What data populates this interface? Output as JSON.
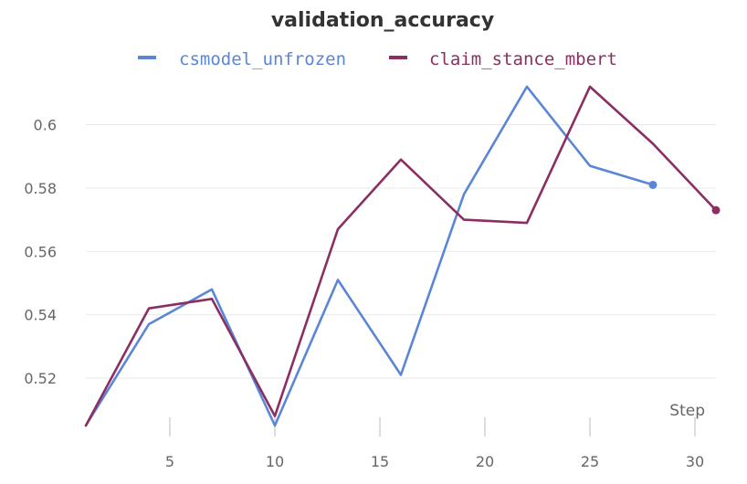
{
  "chart_data": {
    "type": "line",
    "title": "validation_accuracy",
    "xlabel": "Step",
    "ylabel": "",
    "xlim": [
      1,
      31
    ],
    "ylim": [
      0.505,
      0.614
    ],
    "x_ticks": [
      5,
      10,
      15,
      20,
      25,
      30
    ],
    "y_ticks": [
      0.52,
      0.54,
      0.56,
      0.58,
      0.6
    ],
    "y_tick_labels": [
      "0.52",
      "0.54",
      "0.56",
      "0.58",
      "0.6"
    ],
    "grid": "horizontal",
    "legend_position": "top",
    "series": [
      {
        "name": "csmodel_unfrozen",
        "color": "#5b86d6",
        "x": [
          1,
          4,
          7,
          10,
          13,
          16,
          19,
          22,
          25,
          28
        ],
        "y": [
          0.505,
          0.537,
          0.548,
          0.505,
          0.551,
          0.521,
          0.578,
          0.612,
          0.587,
          0.581
        ]
      },
      {
        "name": "claim_stance_mbert",
        "color": "#8b2e62",
        "x": [
          1,
          4,
          7,
          10,
          13,
          16,
          19,
          22,
          25,
          28,
          31
        ],
        "y": [
          0.505,
          0.542,
          0.545,
          0.508,
          0.567,
          0.589,
          0.57,
          0.569,
          0.612,
          0.594,
          0.573
        ]
      }
    ]
  }
}
